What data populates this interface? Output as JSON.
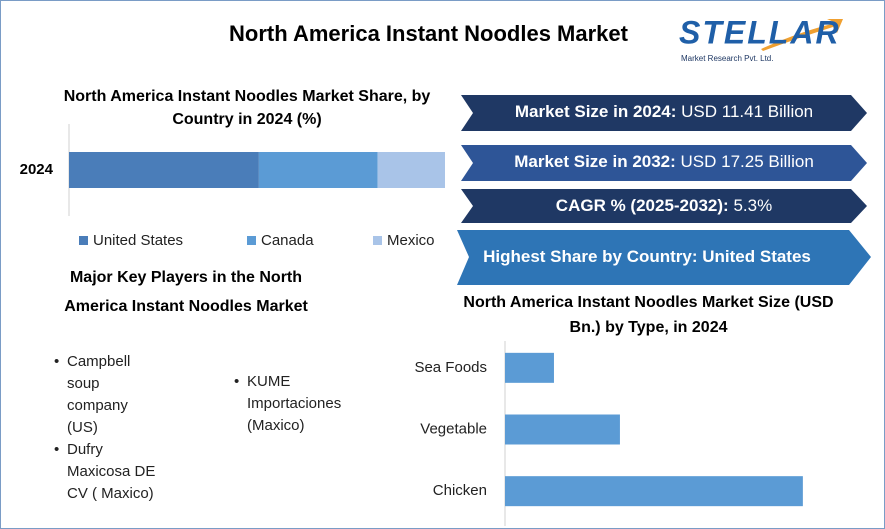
{
  "title": "North America Instant Noodles Market",
  "logo": {
    "name": "STELLAR",
    "tagline": "Market Research Pvt. Ltd."
  },
  "stats": [
    {
      "label": "Market Size in 2024:",
      "value": "USD 11.41 Billion"
    },
    {
      "label": "Market Size in 2032:",
      "value": "USD 17.25 Billion"
    },
    {
      "label": "CAGR % (2025-2032):",
      "value": "5.3%"
    },
    {
      "label": "Highest Share by Country:",
      "value": "United States"
    }
  ],
  "players_title": "Major Key Players in the North America Instant Noodles Market",
  "players": [
    "Campbell soup company (US)",
    "Dufry Maxicosa DE CV ( Maxico)",
    "KUME Importaciones (Maxico)"
  ],
  "chart_data": [
    {
      "type": "stacked-bar",
      "title": "North America Instant Noodles Market Share, by Country in 2024 (%)",
      "categories": [
        "2024"
      ],
      "xlim": [
        0,
        100
      ],
      "series": [
        {
          "name": "United States",
          "color": "#4a7db9",
          "values": [
            50.5
          ]
        },
        {
          "name": "Canada",
          "color": "#5b9bd5",
          "values": [
            31.6
          ]
        },
        {
          "name": "Mexico",
          "color": "#a9c4e8",
          "values": [
            17.9
          ]
        }
      ]
    },
    {
      "type": "bar",
      "title": "North America Instant Noodles Market Size (USD Bn.) by Type, in 2024",
      "categories": [
        "Sea Foods",
        "Vegetable",
        "Chicken"
      ],
      "values": [
        1.21,
        2.84,
        7.36
      ],
      "color": "#5b9bd5",
      "xlim": [
        0,
        8.5
      ]
    }
  ]
}
